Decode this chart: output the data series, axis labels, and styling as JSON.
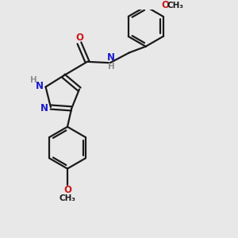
{
  "bg_color": "#e8e8e8",
  "bond_color": "#1a1a1a",
  "nitrogen_color": "#1a1acc",
  "oxygen_color": "#cc1a1a",
  "hydrogen_color": "#909090",
  "line_width": 1.6,
  "font_size": 8.5,
  "fig_size": [
    3.0,
    3.0
  ],
  "dpi": 100,
  "xlim": [
    0,
    10
  ],
  "ylim": [
    0,
    10
  ]
}
